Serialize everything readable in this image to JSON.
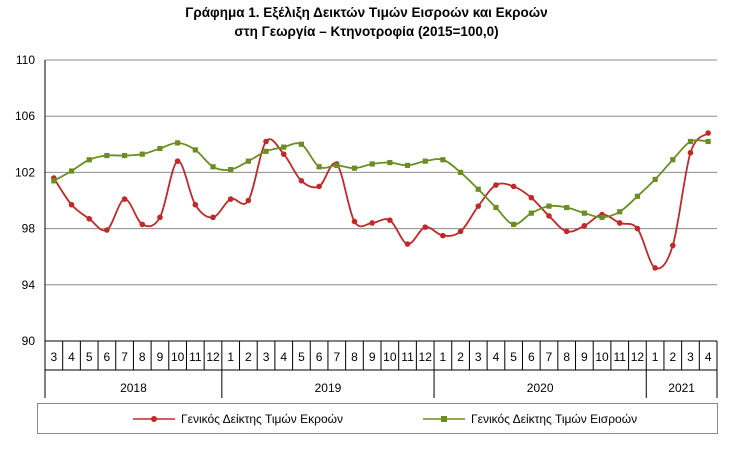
{
  "chart_data": {
    "type": "line",
    "title_line1": "Γράφημα 1. Εξέλιξη Δεικτών Τιμών Εισροών και Εκροών",
    "title_line2": "στη Γεωργία – Κτηνοτροφία (2015=100,0)",
    "ylim": [
      90,
      110
    ],
    "yticks": [
      "90",
      "94",
      "98",
      "102",
      "106",
      "110"
    ],
    "grid": true,
    "legend_position": "bottom",
    "months": [
      "3",
      "4",
      "5",
      "6",
      "7",
      "8",
      "9",
      "10",
      "11",
      "12",
      "1",
      "2",
      "3",
      "4",
      "5",
      "6",
      "7",
      "8",
      "9",
      "10",
      "11",
      "12",
      "1",
      "2",
      "3",
      "4",
      "5",
      "6",
      "7",
      "8",
      "9",
      "10",
      "11",
      "12",
      "1",
      "2",
      "3",
      "4"
    ],
    "years": [
      {
        "label": "2018",
        "count": 10
      },
      {
        "label": "2019",
        "count": 12
      },
      {
        "label": "2020",
        "count": 12
      },
      {
        "label": "2021",
        "count": 4
      }
    ],
    "series": [
      {
        "name": "Γενικός Δείκτης Τιμών Εκροών",
        "color": "#c0282a",
        "values": [
          101.6,
          99.7,
          98.7,
          97.9,
          100.1,
          98.3,
          98.8,
          102.8,
          99.7,
          98.8,
          100.1,
          100.0,
          104.2,
          103.3,
          101.4,
          101.0,
          102.6,
          98.5,
          98.4,
          98.6,
          96.9,
          98.1,
          97.5,
          97.8,
          99.6,
          101.1,
          101.0,
          100.2,
          98.9,
          97.8,
          98.2,
          99.0,
          98.4,
          98.0,
          95.2,
          96.8,
          103.4,
          104.8
        ]
      },
      {
        "name": "Γενικός Δείκτης Τιμών Εισροών",
        "color": "#6b8e23",
        "values": [
          101.4,
          102.1,
          102.9,
          103.2,
          103.2,
          103.3,
          103.7,
          104.1,
          103.6,
          102.4,
          102.2,
          102.8,
          103.5,
          103.8,
          104.0,
          102.4,
          102.5,
          102.3,
          102.6,
          102.7,
          102.5,
          102.8,
          102.9,
          102.0,
          100.8,
          99.5,
          98.3,
          99.1,
          99.6,
          99.5,
          99.1,
          98.8,
          99.2,
          100.3,
          101.5,
          102.9,
          104.2,
          104.2
        ]
      }
    ]
  }
}
